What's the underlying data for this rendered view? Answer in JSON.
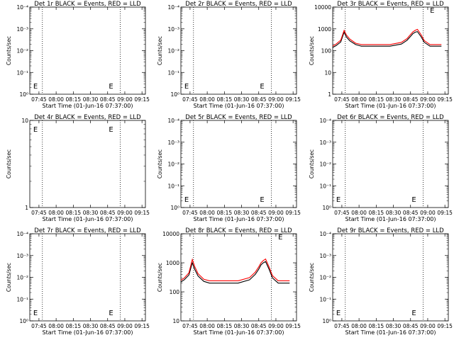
{
  "chart_data": [
    {
      "type": "line",
      "title": "Det 1r BLACK = Events, RED = LLD",
      "xlabel": "Start Time (01-Jun-16 07:37:00)",
      "ylabel": "Counts/sec",
      "x_ticks": [
        "07:45",
        "08:00",
        "08:15",
        "08:30",
        "08:45",
        "09:00",
        "09:15"
      ],
      "yscale": "log",
      "ylim": [
        0.7,
        1.2
      ],
      "yticks": [
        "10⁰",
        "10⁻¹",
        "10⁻²",
        "10⁻³",
        "10⁻⁴"
      ],
      "markers": [
        "E",
        "E"
      ],
      "series": []
    },
    {
      "type": "line",
      "title": "Det 2r BLACK = Events, RED = LLD",
      "xlabel": "Start Time (01-Jun-16 07:37:00)",
      "ylabel": "Counts/sec",
      "x_ticks": [
        "07:45",
        "08:00",
        "08:15",
        "08:30",
        "08:45",
        "09:00",
        "09:15"
      ],
      "yscale": "log",
      "ylim": [
        0.7,
        1.2
      ],
      "yticks": [
        "10⁰",
        "10⁻¹",
        "10⁻²",
        "10⁻³",
        "10⁻⁴"
      ],
      "markers": [
        "E",
        "E"
      ],
      "series": []
    },
    {
      "type": "line",
      "title": "Det 3r BLACK = Events, RED = LLD",
      "xlabel": "Start Time (01-Jun-16 07:37:00)",
      "ylabel": "Counts/sec",
      "x_ticks": [
        "07:45",
        "08:00",
        "08:15",
        "08:30",
        "08:45",
        "09:00",
        "09:15"
      ],
      "yscale": "log",
      "ylim": [
        1,
        10000
      ],
      "yticks": [
        "1",
        "10",
        "100",
        "1000",
        "10000"
      ],
      "markers": [
        "E"
      ],
      "series": [
        {
          "color": "#000000",
          "x": [
            0,
            3,
            7,
            10,
            12,
            15,
            20,
            25,
            30,
            40,
            50,
            60,
            65,
            68,
            70,
            72,
            74,
            77,
            80,
            85,
            90,
            95
          ],
          "y": [
            140,
            170,
            250,
            700,
            420,
            280,
            190,
            160,
            160,
            160,
            160,
            200,
            300,
            450,
            600,
            700,
            750,
            450,
            240,
            160,
            160,
            160
          ]
        },
        {
          "color": "#ff0000",
          "x": [
            0,
            3,
            7,
            10,
            12,
            15,
            20,
            25,
            30,
            40,
            50,
            60,
            65,
            68,
            70,
            72,
            74,
            77,
            80,
            85,
            90,
            95
          ],
          "y": [
            160,
            200,
            300,
            850,
            520,
            340,
            220,
            190,
            190,
            190,
            190,
            240,
            360,
            550,
            720,
            850,
            950,
            560,
            290,
            190,
            190,
            190
          ]
        }
      ]
    },
    {
      "type": "line",
      "title": "Det 4r BLACK = Events, RED = LLD",
      "xlabel": "Start Time (01-Jun-16 07:37:00)",
      "ylabel": "Counts/sec",
      "x_ticks": [
        "07:45",
        "08:00",
        "08:15",
        "08:30",
        "08:45",
        "09:00",
        "09:15"
      ],
      "yscale": "log",
      "ylim": [
        1,
        10
      ],
      "yticks": [
        "1",
        "10"
      ],
      "markers": [
        "E",
        "E"
      ],
      "series": []
    },
    {
      "type": "line",
      "title": "Det 5r BLACK = Events, RED = LLD",
      "xlabel": "Start Time (01-Jun-16 07:37:00)",
      "ylabel": "Counts/sec",
      "x_ticks": [
        "07:45",
        "08:00",
        "08:15",
        "08:30",
        "08:45",
        "09:00",
        "09:15"
      ],
      "yscale": "log",
      "ylim": [
        0.7,
        1.2
      ],
      "yticks": [
        "10⁰",
        "10⁻¹",
        "10⁻²",
        "10⁻³",
        "10⁻⁴"
      ],
      "markers": [
        "E",
        "E"
      ],
      "series": []
    },
    {
      "type": "line",
      "title": "Det 6r BLACK = Events, RED = LLD",
      "xlabel": "Start Time (01-Jun-16 07:37:00)",
      "ylabel": "Counts/sec",
      "x_ticks": [
        "07:45",
        "08:00",
        "08:15",
        "08:30",
        "08:45",
        "09:00",
        "09:15"
      ],
      "yscale": "log",
      "ylim": [
        0.7,
        1.2
      ],
      "yticks": [
        "10⁰",
        "10⁻¹",
        "10⁻²",
        "10⁻³",
        "10⁻⁴"
      ],
      "markers": [
        "E",
        "E"
      ],
      "series": []
    },
    {
      "type": "line",
      "title": "Det 7r BLACK = Events, RED = LLD",
      "xlabel": "Start Time (01-Jun-16 07:37:00)",
      "ylabel": "Counts/sec",
      "x_ticks": [
        "07:45",
        "08:00",
        "08:15",
        "08:30",
        "08:45",
        "09:00",
        "09:15"
      ],
      "yscale": "log",
      "ylim": [
        0.7,
        1.2
      ],
      "yticks": [
        "10⁰",
        "10⁻¹",
        "10⁻²",
        "10⁻³",
        "10⁻⁴"
      ],
      "markers": [
        "E",
        "E"
      ],
      "series": []
    },
    {
      "type": "line",
      "title": "Det 8r BLACK = Events, RED = LLD",
      "xlabel": "Start Time (01-Jun-16 07:37:00)",
      "ylabel": "Counts/sec",
      "x_ticks": [
        "07:45",
        "08:00",
        "08:15",
        "08:30",
        "08:45",
        "09:00",
        "09:15"
      ],
      "yscale": "log",
      "ylim": [
        10,
        10000
      ],
      "yticks": [
        "10",
        "100",
        "1000",
        "10000"
      ],
      "markers": [
        "E"
      ],
      "series": [
        {
          "color": "#000000",
          "x": [
            0,
            3,
            7,
            10,
            12,
            15,
            20,
            25,
            30,
            40,
            50,
            60,
            65,
            68,
            70,
            72,
            74,
            77,
            80,
            85,
            90,
            95
          ],
          "y": [
            220,
            260,
            380,
            1000,
            600,
            350,
            230,
            200,
            200,
            200,
            200,
            260,
            400,
            600,
            850,
            1000,
            1100,
            600,
            300,
            200,
            200,
            200
          ]
        },
        {
          "color": "#ff0000",
          "x": [
            0,
            3,
            7,
            10,
            12,
            15,
            20,
            25,
            30,
            40,
            50,
            60,
            65,
            68,
            70,
            72,
            74,
            77,
            80,
            85,
            90,
            95
          ],
          "y": [
            250,
            300,
            450,
            1300,
            750,
            420,
            270,
            240,
            240,
            240,
            240,
            310,
            480,
            720,
            1000,
            1200,
            1350,
            720,
            360,
            240,
            240,
            240
          ]
        }
      ]
    },
    {
      "type": "line",
      "title": "Det 9r BLACK = Events, RED = LLD",
      "xlabel": "Start Time (01-Jun-16 07:37:00)",
      "ylabel": "Counts/sec",
      "x_ticks": [
        "07:45",
        "08:00",
        "08:15",
        "08:30",
        "08:45",
        "09:00",
        "09:15"
      ],
      "yscale": "log",
      "ylim": [
        0.7,
        1.2
      ],
      "yticks": [
        "10⁰",
        "10⁻¹",
        "10⁻²",
        "10⁻³",
        "10⁻⁴"
      ],
      "markers": [
        "E",
        "E"
      ],
      "series": []
    }
  ]
}
